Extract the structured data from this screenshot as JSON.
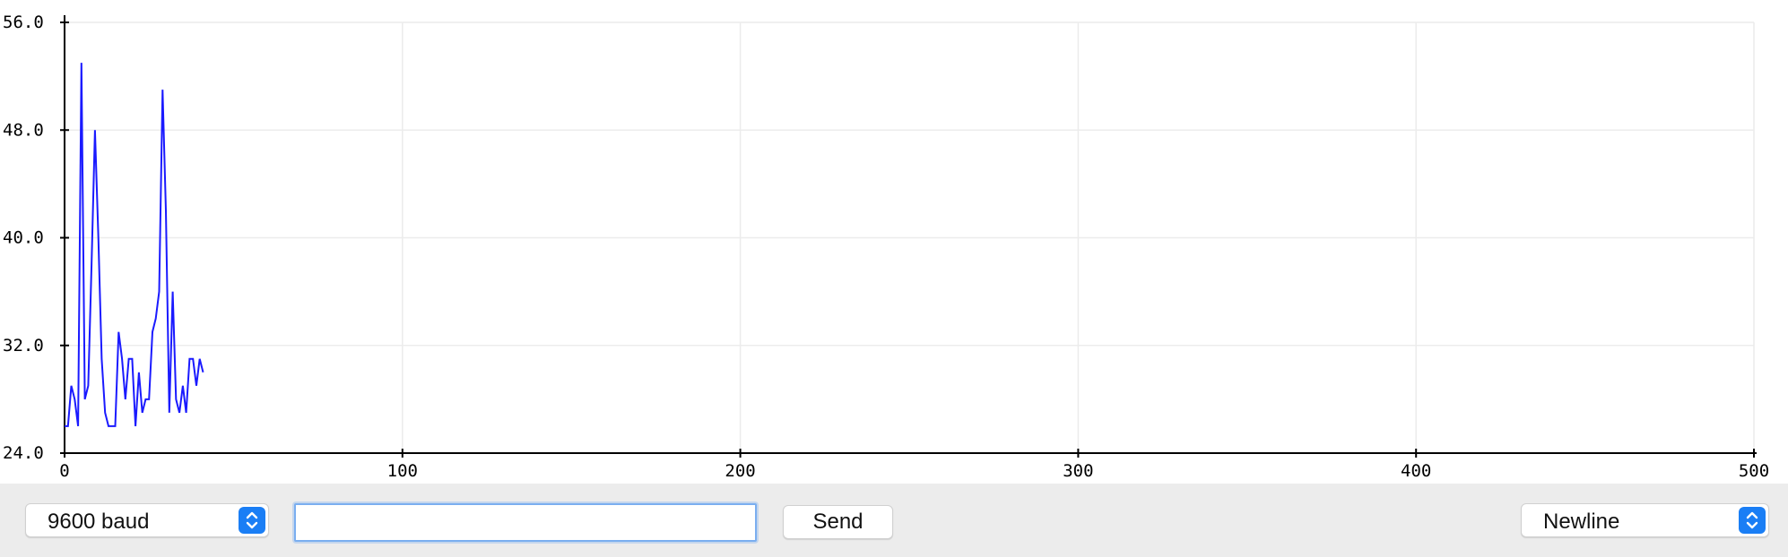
{
  "controls": {
    "baud_label": "9600 baud",
    "message_value": "",
    "message_placeholder": "",
    "send_label": "Send",
    "line_ending_label": "Newline",
    "stepper_icon": "chevron-up-down-icon",
    "accent_color": "#1a7ef5"
  },
  "chart_data": {
    "type": "line",
    "title": "",
    "xlabel": "",
    "ylabel": "",
    "xlim": [
      0,
      500
    ],
    "ylim": [
      24.0,
      56.0
    ],
    "x_ticks": [
      0,
      100,
      200,
      300,
      400,
      500
    ],
    "y_ticks": [
      24.0,
      32.0,
      40.0,
      48.0,
      56.0
    ],
    "x_tick_labels": [
      "0",
      "100",
      "200",
      "300",
      "400",
      "500"
    ],
    "y_tick_labels": [
      "24.0",
      "32.0",
      "40.0",
      "48.0",
      "56.0"
    ],
    "grid": true,
    "legend": "none",
    "series": [
      {
        "color": "#1a1aff",
        "x": [
          0,
          1,
          2,
          3,
          4,
          5,
          6,
          7,
          8,
          9,
          10,
          11,
          12,
          13,
          14,
          15,
          16,
          17,
          18,
          19,
          20,
          21,
          22,
          23,
          24,
          25,
          26,
          27,
          28,
          29,
          30,
          31,
          32,
          33,
          34,
          35,
          36,
          37,
          38,
          39,
          40,
          41
        ],
        "values": [
          26,
          26,
          29,
          28,
          26,
          53,
          28,
          29,
          38,
          48,
          40,
          31,
          27,
          26,
          26,
          26,
          33,
          31,
          28,
          31,
          31,
          26,
          30,
          27,
          28,
          28,
          33,
          34,
          36,
          51,
          42,
          27,
          36,
          28,
          27,
          29,
          27,
          31,
          31,
          29,
          31,
          30
        ]
      }
    ]
  }
}
